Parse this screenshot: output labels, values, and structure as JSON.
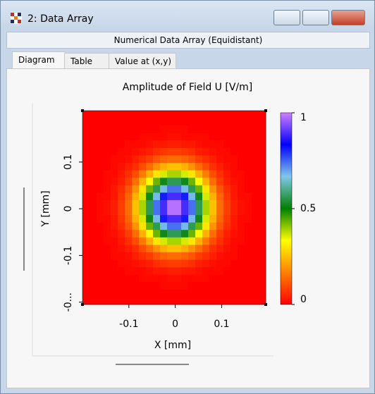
{
  "window": {
    "title": "2: Data Array",
    "header": "Numerical Data Array (Equidistant)",
    "tabs": [
      "Diagram",
      "Table",
      "Value at (x,y)"
    ]
  },
  "chart_data": {
    "type": "heatmap",
    "title": "Amplitude of Field U  [V/m]",
    "x_label": "X [mm]",
    "y_label": "Y [mm]",
    "xlim": [
      -0.2,
      0.195
    ],
    "ylim": [
      -0.205,
      0.21
    ],
    "xticks": [
      -0.1,
      0,
      0.1
    ],
    "yticks": [
      {
        "value": -0.2,
        "label": "-0..."
      },
      -0.1,
      0,
      0.1
    ],
    "clim": [
      0,
      1
    ],
    "cticks": [
      0,
      0.5,
      1
    ],
    "colorscale": [
      "#ff0000",
      "#ff8000",
      "#ffff00",
      "#008000",
      "#80c8e8",
      "#0000ff",
      "#d080ff"
    ],
    "z": [
      [
        0,
        0,
        0,
        0,
        0,
        0,
        0,
        0,
        0,
        0,
        0,
        0,
        0,
        0,
        0,
        0,
        0,
        0,
        0,
        0,
        0,
        0,
        0,
        0,
        0,
        0
      ],
      [
        0,
        0,
        0,
        0,
        0,
        0,
        0,
        0,
        0,
        0,
        0,
        0,
        0,
        0,
        0,
        0,
        0,
        0,
        0,
        0,
        0,
        0,
        0,
        0,
        0,
        0
      ],
      [
        0,
        0,
        0,
        0,
        0,
        0,
        0,
        0,
        0,
        0,
        0,
        0.01,
        0.01,
        0.01,
        0.01,
        0,
        0,
        0,
        0,
        0,
        0,
        0,
        0,
        0,
        0,
        0
      ],
      [
        0,
        0,
        0,
        0,
        0,
        0,
        0,
        0,
        0.01,
        0.01,
        0.01,
        0.01,
        0.02,
        0.02,
        0.01,
        0.01,
        0.01,
        0.01,
        0,
        0,
        0,
        0,
        0,
        0,
        0,
        0
      ],
      [
        0,
        0,
        0,
        0,
        0,
        0,
        0.01,
        0.01,
        0.01,
        0.02,
        0.03,
        0.03,
        0.04,
        0.04,
        0.03,
        0.03,
        0.02,
        0.01,
        0.01,
        0.01,
        0,
        0,
        0,
        0,
        0,
        0
      ],
      [
        0,
        0,
        0,
        0,
        0,
        0.01,
        0.01,
        0.02,
        0.03,
        0.04,
        0.06,
        0.07,
        0.08,
        0.08,
        0.07,
        0.06,
        0.04,
        0.03,
        0.02,
        0.01,
        0.01,
        0,
        0,
        0,
        0,
        0
      ],
      [
        0,
        0,
        0,
        0,
        0.01,
        0.01,
        0.02,
        0.04,
        0.06,
        0.08,
        0.11,
        0.13,
        0.14,
        0.14,
        0.13,
        0.11,
        0.08,
        0.06,
        0.04,
        0.02,
        0.01,
        0.01,
        0,
        0,
        0,
        0
      ],
      [
        0,
        0,
        0,
        0,
        0.01,
        0.02,
        0.04,
        0.06,
        0.1,
        0.14,
        0.19,
        0.23,
        0.25,
        0.25,
        0.23,
        0.19,
        0.14,
        0.1,
        0.06,
        0.04,
        0.02,
        0.01,
        0,
        0,
        0,
        0
      ],
      [
        0,
        0,
        0,
        0.01,
        0.01,
        0.03,
        0.06,
        0.1,
        0.16,
        0.23,
        0.3,
        0.36,
        0.39,
        0.39,
        0.36,
        0.3,
        0.23,
        0.16,
        0.1,
        0.06,
        0.03,
        0.01,
        0.01,
        0,
        0,
        0
      ],
      [
        0,
        0,
        0,
        0.01,
        0.02,
        0.04,
        0.08,
        0.14,
        0.23,
        0.33,
        0.43,
        0.52,
        0.56,
        0.56,
        0.52,
        0.43,
        0.33,
        0.23,
        0.14,
        0.08,
        0.04,
        0.02,
        0.01,
        0,
        0,
        0
      ],
      [
        0,
        0,
        0,
        0.01,
        0.03,
        0.06,
        0.11,
        0.19,
        0.3,
        0.43,
        0.56,
        0.68,
        0.74,
        0.74,
        0.68,
        0.56,
        0.43,
        0.3,
        0.19,
        0.11,
        0.06,
        0.03,
        0.01,
        0,
        0,
        0
      ],
      [
        0,
        0,
        0.01,
        0.01,
        0.03,
        0.07,
        0.13,
        0.23,
        0.36,
        0.52,
        0.68,
        0.81,
        0.89,
        0.89,
        0.81,
        0.68,
        0.52,
        0.36,
        0.23,
        0.13,
        0.07,
        0.03,
        0.01,
        0.01,
        0,
        0
      ],
      [
        0,
        0,
        0.01,
        0.02,
        0.04,
        0.08,
        0.14,
        0.25,
        0.39,
        0.56,
        0.74,
        0.89,
        0.98,
        0.98,
        0.89,
        0.74,
        0.56,
        0.39,
        0.25,
        0.14,
        0.08,
        0.04,
        0.02,
        0.01,
        0,
        0
      ],
      [
        0,
        0,
        0.01,
        0.02,
        0.04,
        0.08,
        0.14,
        0.25,
        0.39,
        0.56,
        0.74,
        0.89,
        0.98,
        0.98,
        0.89,
        0.74,
        0.56,
        0.39,
        0.25,
        0.14,
        0.08,
        0.04,
        0.02,
        0.01,
        0,
        0
      ],
      [
        0,
        0,
        0.01,
        0.01,
        0.03,
        0.07,
        0.13,
        0.23,
        0.36,
        0.52,
        0.68,
        0.81,
        0.89,
        0.89,
        0.81,
        0.68,
        0.52,
        0.36,
        0.23,
        0.13,
        0.07,
        0.03,
        0.01,
        0.01,
        0,
        0
      ],
      [
        0,
        0,
        0,
        0.01,
        0.03,
        0.06,
        0.11,
        0.19,
        0.3,
        0.43,
        0.56,
        0.68,
        0.74,
        0.74,
        0.68,
        0.56,
        0.43,
        0.3,
        0.19,
        0.11,
        0.06,
        0.03,
        0.01,
        0,
        0,
        0
      ],
      [
        0,
        0,
        0,
        0.01,
        0.02,
        0.04,
        0.08,
        0.14,
        0.23,
        0.33,
        0.43,
        0.52,
        0.56,
        0.56,
        0.52,
        0.43,
        0.33,
        0.23,
        0.14,
        0.08,
        0.04,
        0.02,
        0.01,
        0,
        0,
        0
      ],
      [
        0,
        0,
        0,
        0.01,
        0.01,
        0.03,
        0.06,
        0.1,
        0.16,
        0.23,
        0.3,
        0.36,
        0.39,
        0.39,
        0.36,
        0.3,
        0.23,
        0.16,
        0.1,
        0.06,
        0.03,
        0.01,
        0.01,
        0,
        0,
        0
      ],
      [
        0,
        0,
        0,
        0,
        0.01,
        0.02,
        0.04,
        0.06,
        0.1,
        0.14,
        0.19,
        0.23,
        0.25,
        0.25,
        0.23,
        0.19,
        0.14,
        0.1,
        0.06,
        0.04,
        0.02,
        0.01,
        0,
        0,
        0,
        0
      ],
      [
        0,
        0,
        0,
        0,
        0.01,
        0.01,
        0.02,
        0.04,
        0.06,
        0.08,
        0.11,
        0.13,
        0.14,
        0.14,
        0.13,
        0.11,
        0.08,
        0.06,
        0.04,
        0.02,
        0.01,
        0.01,
        0,
        0,
        0,
        0
      ],
      [
        0,
        0,
        0,
        0,
        0,
        0.01,
        0.01,
        0.02,
        0.03,
        0.04,
        0.06,
        0.07,
        0.08,
        0.08,
        0.07,
        0.06,
        0.04,
        0.03,
        0.02,
        0.01,
        0.01,
        0,
        0,
        0,
        0,
        0
      ],
      [
        0,
        0,
        0,
        0,
        0,
        0,
        0.01,
        0.01,
        0.01,
        0.02,
        0.03,
        0.03,
        0.04,
        0.04,
        0.03,
        0.03,
        0.02,
        0.01,
        0.01,
        0.01,
        0,
        0,
        0,
        0,
        0,
        0
      ],
      [
        0,
        0,
        0,
        0,
        0,
        0,
        0,
        0,
        0.01,
        0.01,
        0.01,
        0.01,
        0.02,
        0.02,
        0.01,
        0.01,
        0.01,
        0.01,
        0,
        0,
        0,
        0,
        0,
        0,
        0,
        0
      ],
      [
        0,
        0,
        0,
        0,
        0,
        0,
        0,
        0,
        0,
        0,
        0,
        0.01,
        0.01,
        0.01,
        0.01,
        0,
        0,
        0,
        0,
        0,
        0,
        0,
        0,
        0,
        0,
        0
      ],
      [
        0,
        0,
        0,
        0,
        0,
        0,
        0,
        0,
        0,
        0,
        0,
        0,
        0,
        0,
        0,
        0,
        0,
        0,
        0,
        0,
        0,
        0,
        0,
        0,
        0,
        0
      ],
      [
        0,
        0,
        0,
        0,
        0,
        0,
        0,
        0,
        0,
        0,
        0,
        0,
        0,
        0,
        0,
        0,
        0,
        0,
        0,
        0,
        0,
        0,
        0,
        0,
        0,
        0
      ]
    ]
  }
}
